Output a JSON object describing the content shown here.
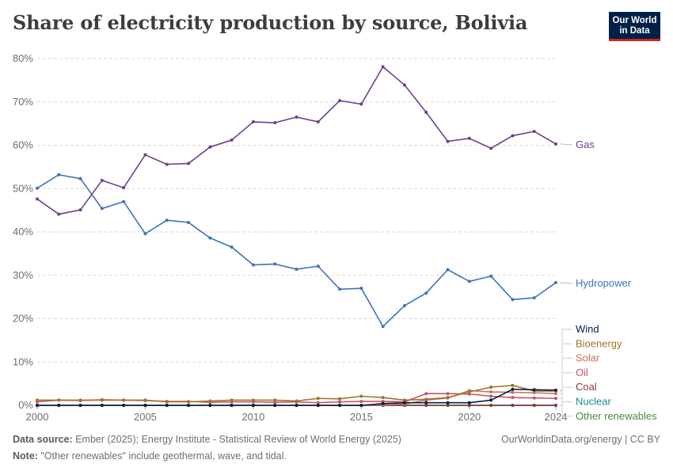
{
  "title": "Share of electricity production by source, Bolivia",
  "logo": {
    "line1": "Our World",
    "line2": "in Data"
  },
  "footer": {
    "source_label": "Data source:",
    "source_text": "Ember (2025); Energy Institute - Statistical Review of World Energy (2025)",
    "note_label": "Note:",
    "note_text": "\"Other renewables\" include geothermal, wave, and tidal.",
    "url": "OurWorldinData.org/energy | CC BY"
  },
  "chart_data": {
    "type": "line",
    "title": "Share of electricity production by source, Bolivia",
    "xlabel": "",
    "ylabel": "",
    "xlim": [
      2000,
      2024
    ],
    "ylim": [
      0,
      80
    ],
    "x_ticks": [
      2000,
      2005,
      2010,
      2015,
      2020,
      2024
    ],
    "y_ticks": [
      0,
      10,
      20,
      30,
      40,
      50,
      60,
      70,
      80
    ],
    "y_tick_labels": [
      "0%",
      "10%",
      "20%",
      "30%",
      "40%",
      "50%",
      "60%",
      "70%",
      "80%"
    ],
    "x_tick_labels": [
      "2000",
      "2005",
      "2010",
      "2015",
      "2020",
      "2024"
    ],
    "grid": true,
    "legend": "right-end labels",
    "x": [
      2000,
      2001,
      2002,
      2003,
      2004,
      2005,
      2006,
      2007,
      2008,
      2009,
      2010,
      2011,
      2012,
      2013,
      2014,
      2015,
      2016,
      2017,
      2018,
      2019,
      2020,
      2021,
      2022,
      2023,
      2024
    ],
    "series": [
      {
        "name": "Gas",
        "color": "#6d3e91",
        "values": [
          47.6,
          44.1,
          45.1,
          51.9,
          50.2,
          57.8,
          55.6,
          55.8,
          59.6,
          61.2,
          65.4,
          65.2,
          66.5,
          65.4,
          70.3,
          69.5,
          78.1,
          73.9,
          67.6,
          60.9,
          61.6,
          59.3,
          62.2,
          63.2,
          60.3
        ]
      },
      {
        "name": "Hydropower",
        "color": "#3c74b9",
        "values": [
          50.1,
          53.2,
          52.3,
          45.4,
          47.0,
          39.6,
          42.7,
          42.2,
          38.6,
          36.5,
          32.4,
          32.6,
          31.4,
          32.1,
          26.8,
          27.0,
          18.2,
          23.0,
          25.9,
          31.3,
          28.6,
          29.8,
          24.4,
          24.8,
          28.3
        ]
      },
      {
        "name": "Wind",
        "color": "#002147",
        "values": [
          0,
          0,
          0,
          0,
          0,
          0,
          0,
          0,
          0,
          0,
          0,
          0,
          0,
          0,
          0,
          0,
          0.4,
          0.6,
          0.6,
          0.6,
          0.6,
          1.2,
          3.7,
          3.6,
          3.5
        ]
      },
      {
        "name": "Bioenergy",
        "color": "#a2722e",
        "values": [
          1.2,
          1.2,
          1.2,
          1.2,
          1.2,
          1.2,
          0.8,
          0.8,
          1.0,
          1.2,
          1.2,
          1.2,
          1.0,
          1.6,
          1.5,
          2.1,
          1.8,
          1.2,
          1.4,
          1.8,
          3.1,
          4.2,
          4.6,
          3.3,
          3.3
        ]
      },
      {
        "name": "Solar",
        "color": "#c9735d",
        "values": [
          0,
          0,
          0,
          0,
          0,
          0,
          0,
          0,
          0,
          0,
          0,
          0,
          0,
          0,
          0,
          0,
          0.1,
          0.3,
          1.2,
          1.7,
          3.4,
          3.1,
          3.0,
          2.9,
          2.7
        ]
      },
      {
        "name": "Oil",
        "color": "#c95168",
        "values": [
          0.8,
          1.2,
          1.1,
          1.3,
          1.2,
          1.1,
          0.9,
          0.9,
          0.7,
          0.8,
          0.8,
          0.7,
          0.8,
          0.6,
          0.8,
          0.9,
          0.9,
          0.8,
          2.7,
          2.7,
          2.6,
          2.1,
          1.8,
          1.7,
          1.6
        ]
      },
      {
        "name": "Coal",
        "color": "#8b3a39",
        "values": [
          0,
          0,
          0,
          0,
          0,
          0,
          0,
          0,
          0,
          0,
          0,
          0,
          0,
          0,
          0,
          0,
          0,
          0,
          0,
          0,
          0,
          0,
          0,
          0,
          0
        ]
      },
      {
        "name": "Nuclear",
        "color": "#1c8a8e",
        "values": [
          0,
          0,
          0,
          0,
          0,
          0,
          0,
          0,
          0,
          0,
          0,
          0,
          0,
          0,
          0,
          0,
          0,
          0,
          0,
          0,
          0,
          0,
          0,
          0,
          0
        ]
      },
      {
        "name": "Other renewables",
        "color": "#4c8a3a",
        "values": [
          0,
          0,
          0,
          0,
          0,
          0,
          0,
          0,
          0,
          0,
          0,
          0,
          0,
          0,
          0,
          0,
          0,
          0,
          0,
          0,
          0,
          0,
          0,
          0,
          0
        ]
      }
    ]
  }
}
